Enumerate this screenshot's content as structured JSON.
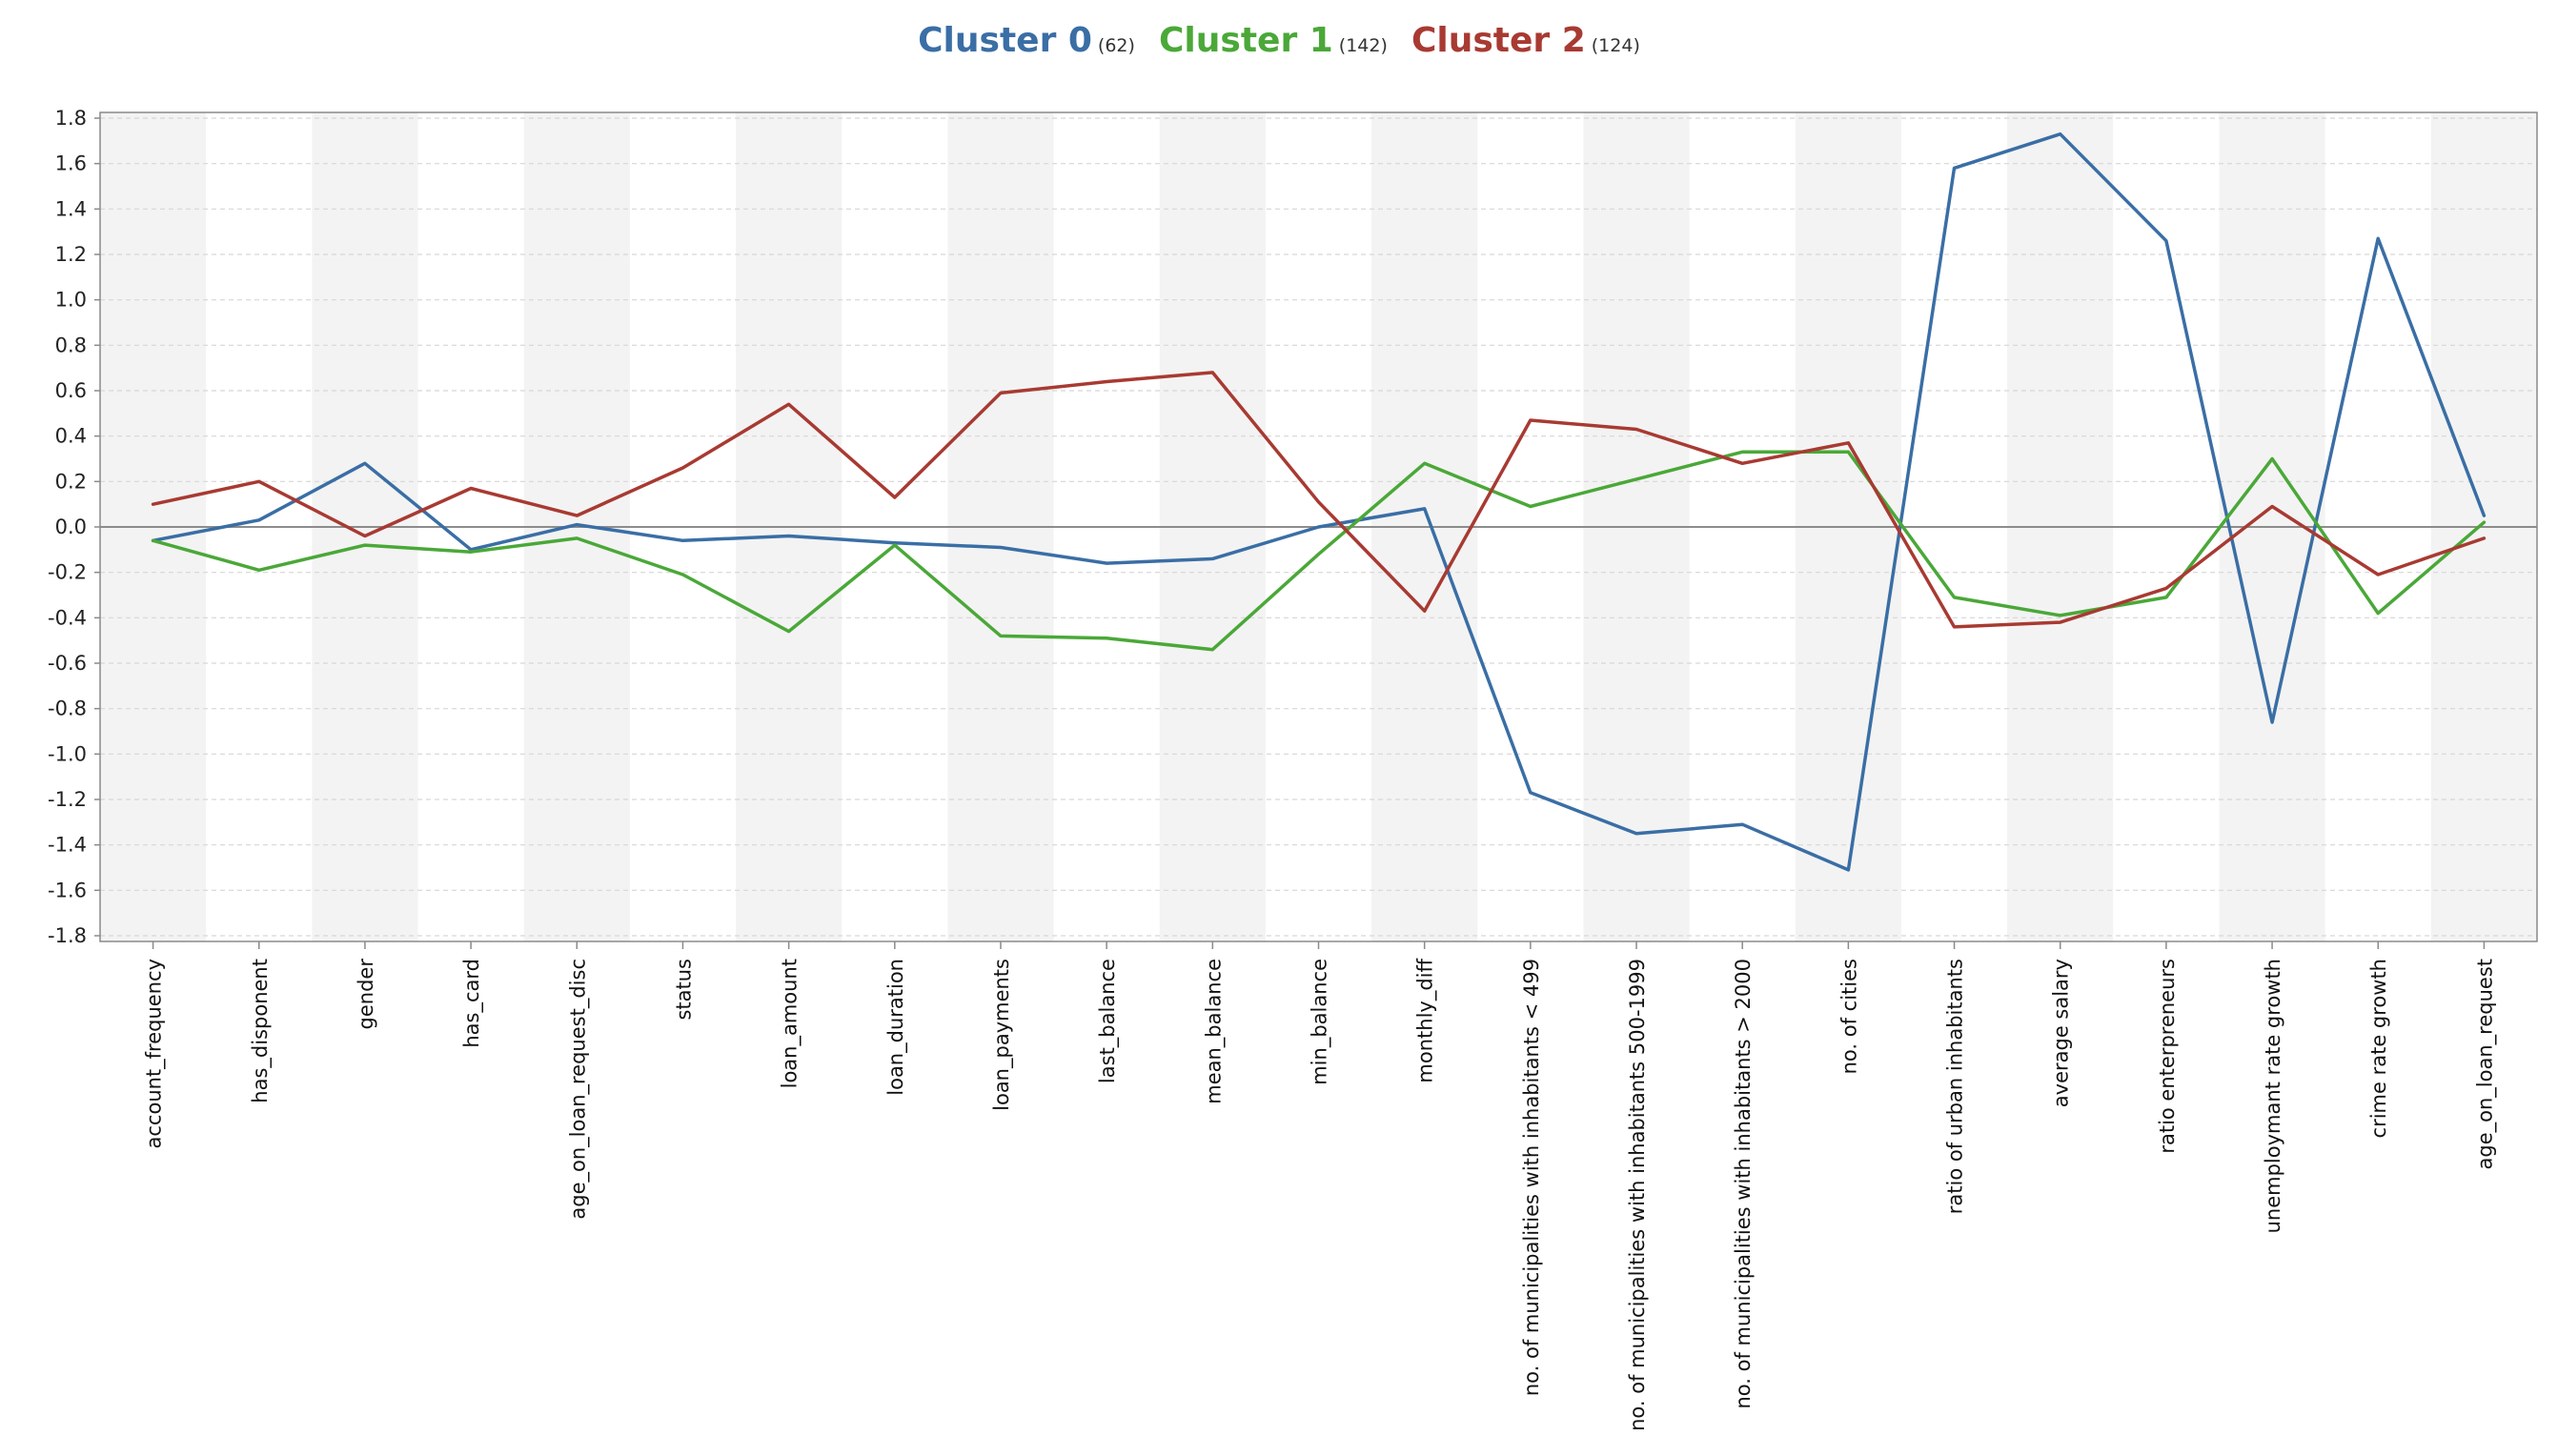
{
  "chart_data": {
    "type": "line",
    "title": "",
    "xlabel": "",
    "ylabel": "",
    "ylim": [
      -1.8,
      1.8
    ],
    "yticks": [
      1.8,
      1.6,
      1.4,
      1.2,
      1.0,
      0.8,
      0.6,
      0.4,
      0.2,
      0.0,
      -0.2,
      -0.4,
      -0.6,
      -0.8,
      -1.0,
      -1.2,
      -1.4,
      -1.6,
      -1.8
    ],
    "ytick_labels": [
      "1.8",
      "1.6",
      "1.4",
      "1.2",
      "1.0",
      "0.8",
      "0.6",
      "0.4",
      "0.2",
      "0.0",
      "-0.2",
      "-0.4",
      "-0.6",
      "-0.8",
      "-1.0",
      "-1.2",
      "-1.4",
      "-1.6",
      "-1.8"
    ],
    "grid": true,
    "legend_position": "top-center",
    "categories": [
      "account_frequency",
      "has_disponent",
      "gender",
      "has_card",
      "age_on_loan_request_disc",
      "status",
      "loan_amount",
      "loan_duration",
      "loan_payments",
      "last_balance",
      "mean_balance",
      "min_balance",
      "monthly_diff",
      "no. of municipalities with inhabitants < 499",
      "no. of municipalities with inhabitants 500-1999",
      "no. of municipalities with inhabitants > 2000",
      "no. of cities",
      "ratio of urban inhabitants",
      "average salary",
      "ratio enterpreneurs",
      "unemploymant rate growth",
      "crime rate growth",
      "age_on_loan_request"
    ],
    "series": [
      {
        "name": "Cluster 0",
        "count_label": "(62)",
        "color": "#3a6ea5",
        "values": [
          -0.06,
          0.03,
          0.28,
          -0.1,
          0.01,
          -0.06,
          -0.04,
          -0.07,
          -0.09,
          -0.16,
          -0.14,
          0.0,
          0.08,
          -1.17,
          -1.35,
          -1.31,
          -1.51,
          1.58,
          1.73,
          1.26,
          -0.86,
          1.27,
          0.05
        ]
      },
      {
        "name": "Cluster 1",
        "count_label": "(142)",
        "color": "#4aa838",
        "values": [
          -0.06,
          -0.19,
          -0.08,
          -0.11,
          -0.05,
          -0.21,
          -0.46,
          -0.08,
          -0.48,
          -0.49,
          -0.54,
          -0.12,
          0.28,
          0.09,
          0.21,
          0.33,
          0.33,
          -0.31,
          -0.39,
          -0.31,
          0.3,
          -0.38,
          0.02
        ]
      },
      {
        "name": "Cluster 2",
        "count_label": "(124)",
        "color": "#a83a32",
        "values": [
          0.1,
          0.2,
          -0.04,
          0.17,
          0.05,
          0.26,
          0.54,
          0.13,
          0.59,
          0.64,
          0.68,
          0.11,
          -0.37,
          0.47,
          0.43,
          0.28,
          0.37,
          -0.44,
          -0.42,
          -0.27,
          0.09,
          -0.21,
          -0.05
        ]
      }
    ]
  }
}
